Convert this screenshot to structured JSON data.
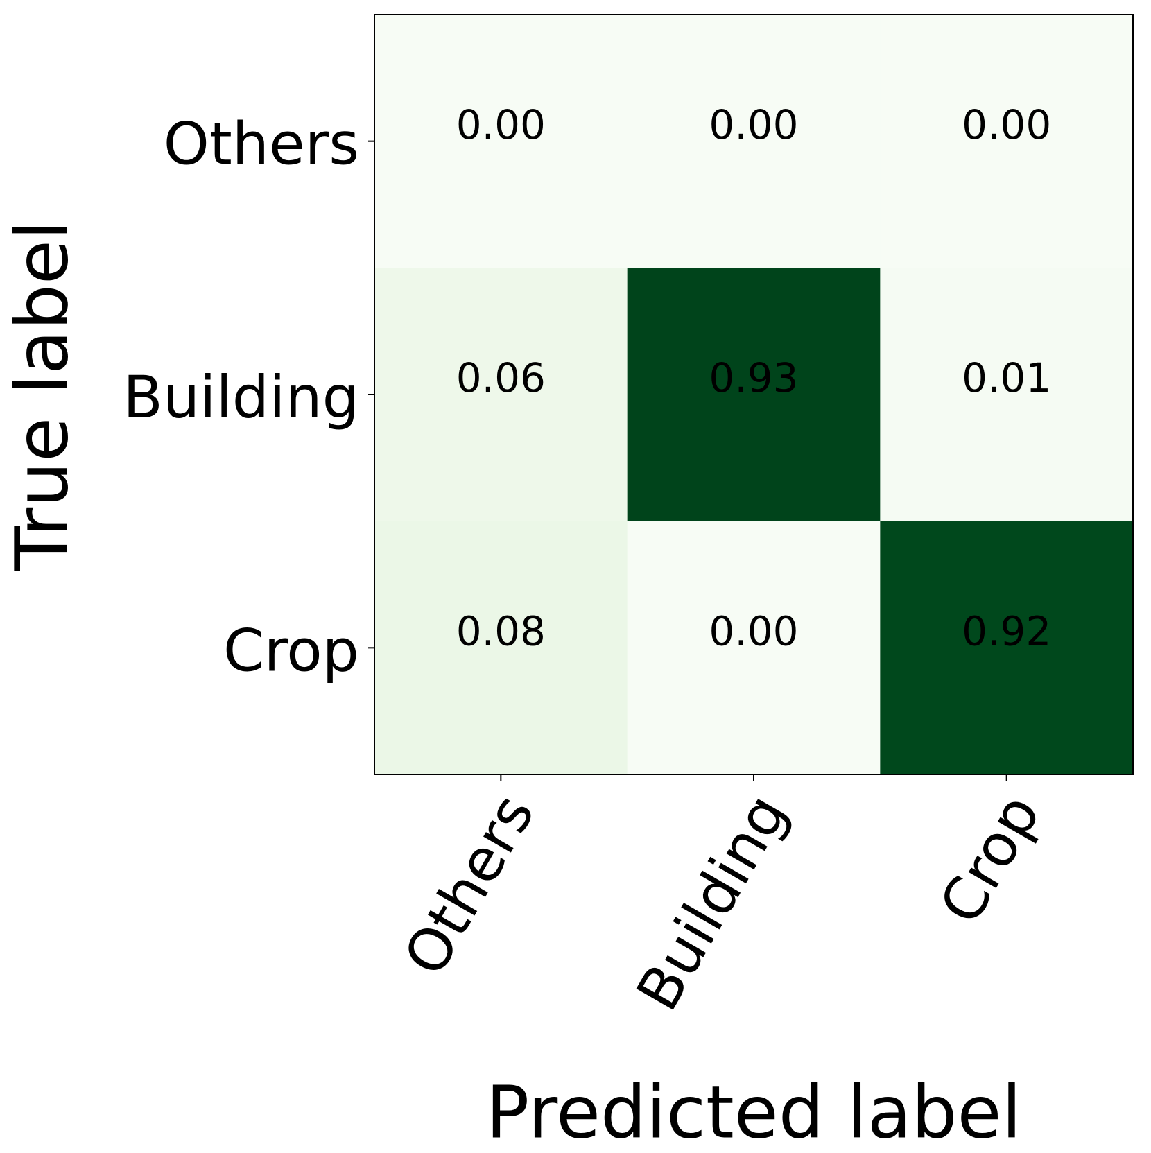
{
  "chart_data": {
    "type": "heatmap",
    "x_label": "Predicted label",
    "y_label": "True label",
    "x_categories": [
      "Others",
      "Building",
      "Crop"
    ],
    "y_categories": [
      "Others",
      "Building",
      "Crop"
    ],
    "values": [
      [
        0,
        0,
        0
      ],
      [
        0.06,
        0.93,
        0.01
      ],
      [
        0.08,
        0,
        0.92
      ]
    ],
    "value_labels": [
      [
        "0.00",
        "0.00",
        "0.00"
      ],
      [
        "0.06",
        "0.93",
        "0.01"
      ],
      [
        "0.08",
        "0.00",
        "0.92"
      ]
    ],
    "vlim": [
      0,
      0.93
    ],
    "colormap": [
      "#f7fcf5",
      "#e5f5e0",
      "#c7e9c0",
      "#a1d99b",
      "#74c476",
      "#41ab5d",
      "#238b45",
      "#006d2c",
      "#00441b"
    ]
  }
}
